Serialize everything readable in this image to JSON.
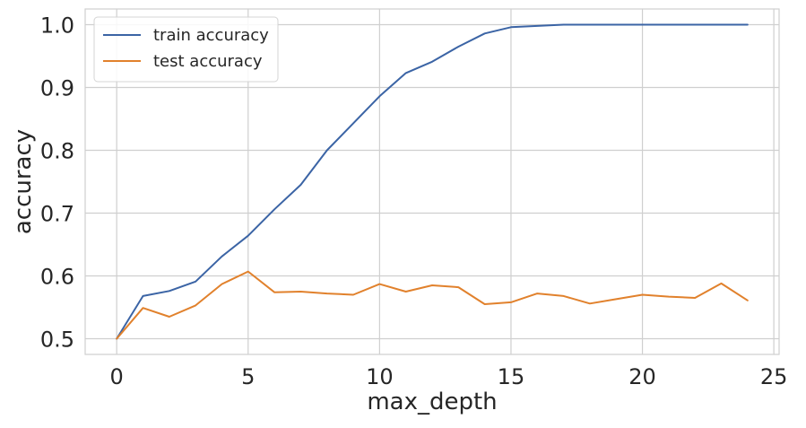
{
  "chart_data": {
    "type": "line",
    "title": "",
    "xlabel": "max_depth",
    "ylabel": "accuracy",
    "xlim": [
      -1.2,
      25.2
    ],
    "ylim": [
      0.475,
      1.025
    ],
    "xticks": [
      0,
      5,
      10,
      15,
      20,
      25
    ],
    "yticks": [
      0.5,
      0.6,
      0.7,
      0.8,
      0.9,
      1.0
    ],
    "xtick_labels": [
      "0",
      "5",
      "10",
      "15",
      "20",
      "25"
    ],
    "ytick_labels": [
      "0.5",
      "0.6",
      "0.7",
      "0.8",
      "0.9",
      "1.0"
    ],
    "grid": true,
    "legend_position": "top-left",
    "x": [
      0,
      1,
      2,
      3,
      4,
      5,
      6,
      7,
      8,
      9,
      10,
      11,
      12,
      13,
      14,
      15,
      16,
      17,
      18,
      19,
      20,
      21,
      22,
      23,
      24
    ],
    "series": [
      {
        "name": "train accuracy",
        "color": "#3b64a5",
        "values": [
          0.5,
          0.568,
          0.576,
          0.591,
          0.631,
          0.664,
          0.706,
          0.745,
          0.8,
          0.843,
          0.886,
          0.923,
          0.941,
          0.965,
          0.986,
          0.996,
          0.998,
          1.0,
          1.0,
          1.0,
          1.0,
          1.0,
          1.0,
          1.0,
          1.0
        ]
      },
      {
        "name": "test accuracy",
        "color": "#e1812c",
        "values": [
          0.5,
          0.549,
          0.535,
          0.553,
          0.587,
          0.607,
          0.574,
          0.575,
          0.572,
          0.57,
          0.587,
          0.575,
          0.585,
          0.582,
          0.555,
          0.558,
          0.572,
          0.568,
          0.556,
          0.563,
          0.57,
          0.567,
          0.565,
          0.588,
          0.561
        ]
      }
    ]
  }
}
